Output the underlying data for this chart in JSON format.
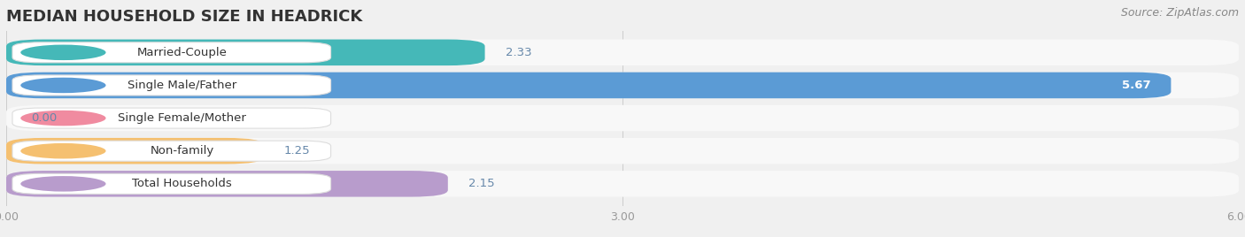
{
  "title": "MEDIAN HOUSEHOLD SIZE IN HEADRICK",
  "source": "Source: ZipAtlas.com",
  "categories": [
    "Married-Couple",
    "Single Male/Father",
    "Single Female/Mother",
    "Non-family",
    "Total Households"
  ],
  "values": [
    2.33,
    5.67,
    0.0,
    1.25,
    2.15
  ],
  "bar_colors": [
    "#45b8b8",
    "#5b9bd5",
    "#f08ba0",
    "#f5c070",
    "#b89ccc"
  ],
  "label_bg_color": "#ffffff",
  "xlim": [
    0,
    6.0
  ],
  "xticks": [
    0.0,
    3.0,
    6.0
  ],
  "value_color_outside": "#6688aa",
  "value_color_inside": "#ffffff",
  "title_fontsize": 13,
  "label_fontsize": 9.5,
  "value_fontsize": 9.5,
  "source_fontsize": 9,
  "bg_color": "#f0f0f0",
  "bar_bg_color": "#e2e2e2",
  "row_bg_color": "#f8f8f8"
}
